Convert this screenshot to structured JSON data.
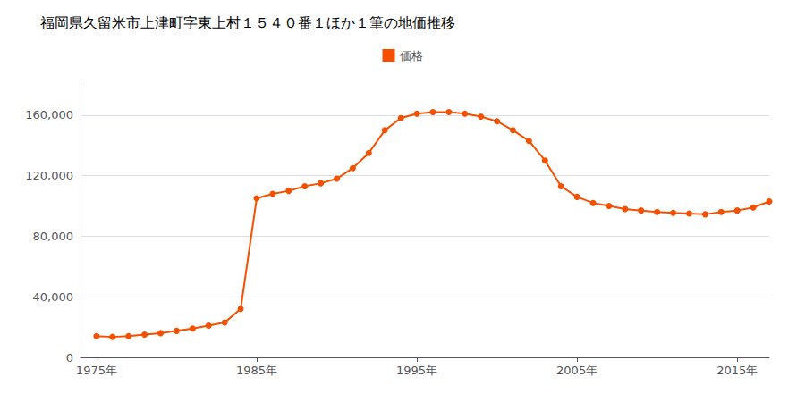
{
  "chart_data": {
    "type": "line",
    "title": "福岡県久留米市上津町字東上村１５４０番１ほか１筆の地価推移",
    "x": [
      1975,
      1976,
      1977,
      1978,
      1979,
      1980,
      1981,
      1982,
      1983,
      1984,
      1985,
      1986,
      1987,
      1988,
      1989,
      1990,
      1991,
      1992,
      1993,
      1994,
      1995,
      1996,
      1997,
      1998,
      1999,
      2000,
      2001,
      2002,
      2003,
      2004,
      2005,
      2006,
      2007,
      2008,
      2009,
      2010,
      2011,
      2012,
      2013,
      2014,
      2015,
      2016,
      2017
    ],
    "series": [
      {
        "name": "価格",
        "color": "#f55000",
        "marker": "circle",
        "values": [
          14000,
          13500,
          14000,
          15000,
          16000,
          17500,
          19000,
          21000,
          23000,
          32000,
          105000,
          108000,
          110000,
          113000,
          115000,
          118000,
          125000,
          135000,
          150000,
          158000,
          161000,
          162000,
          162000,
          161000,
          159000,
          156000,
          150000,
          143000,
          130000,
          113000,
          106000,
          102000,
          100000,
          98000,
          97000,
          96000,
          95500,
          95000,
          94500,
          96000,
          97000,
          99000,
          103000
        ]
      }
    ],
    "xlim": [
      1974,
      2017
    ],
    "xticks": [
      {
        "value": 1975,
        "label": "1975年"
      },
      {
        "value": 1985,
        "label": "1985年"
      },
      {
        "value": 1995,
        "label": "1995年"
      },
      {
        "value": 2005,
        "label": "2005年"
      },
      {
        "value": 2015,
        "label": "2015年"
      }
    ],
    "ylim": [
      0,
      180000
    ],
    "yticks": [
      0,
      {
        "value": 40000,
        "label": "40,000"
      },
      {
        "value": 80000,
        "label": "80,000"
      },
      {
        "value": 120000,
        "label": "120,000"
      },
      {
        "value": 160000,
        "label": "160,000"
      }
    ],
    "grid": true
  }
}
